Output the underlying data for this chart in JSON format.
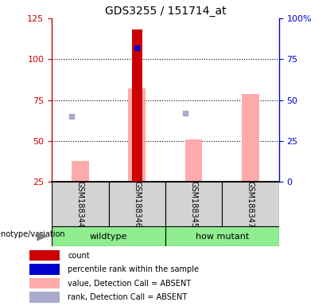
{
  "title": "GDS3255 / 151714_at",
  "samples": [
    "GSM188344",
    "GSM188346",
    "GSM188345",
    "GSM188347"
  ],
  "count_values": [
    null,
    118,
    null,
    null
  ],
  "count_color": "#cc0000",
  "percentile_rank_values": [
    null,
    82,
    null,
    null
  ],
  "percentile_rank_color": "#0000cc",
  "value_absent_values": [
    38,
    82,
    51,
    79
  ],
  "value_absent_color": "#ffaaaa",
  "rank_absent_values": [
    65,
    null,
    67,
    null
  ],
  "rank_absent_color": "#aaaacc",
  "ylim_left": [
    25,
    125
  ],
  "ylim_right": [
    0,
    100
  ],
  "yticks_left": [
    25,
    50,
    75,
    100,
    125
  ],
  "yticks_right": [
    0,
    25,
    50,
    75,
    100
  ],
  "ytick_labels_right": [
    "0",
    "25",
    "50",
    "75",
    "100%"
  ],
  "left_axis_color": "#cc0000",
  "right_axis_color": "#0000cc",
  "bar_bottom": 25,
  "pink_bar_width": 0.3,
  "red_bar_width": 0.18,
  "legend_items": [
    {
      "label": "count",
      "color": "#cc0000"
    },
    {
      "label": "percentile rank within the sample",
      "color": "#0000cc"
    },
    {
      "label": "value, Detection Call = ABSENT",
      "color": "#ffaaaa"
    },
    {
      "label": "rank, Detection Call = ABSENT",
      "color": "#aaaacc"
    }
  ],
  "group_color": "#90ee90",
  "sample_box_color": "#d3d3d3",
  "wildtype_label": "wildtype",
  "howmutant_label": "how mutant",
  "geno_label": "genotype/variation"
}
